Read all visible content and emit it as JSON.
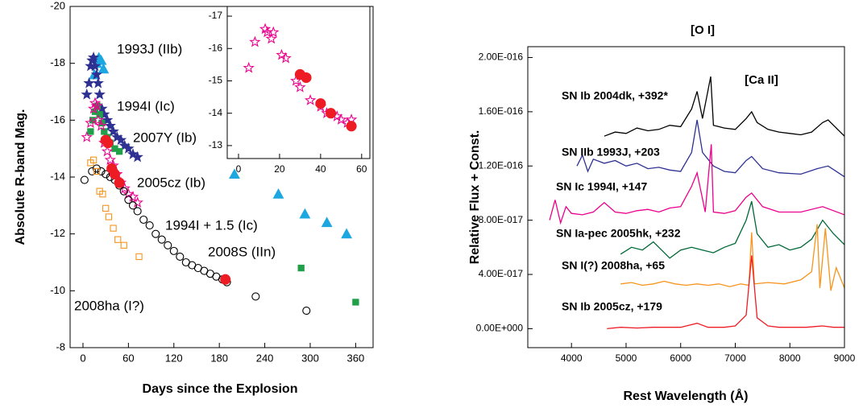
{
  "chart_data": [
    {
      "type": "scatter",
      "xlabel": "Days since the Explosion",
      "ylabel": "Absolute R-band Mag.",
      "xlim": [
        -17,
        383
      ],
      "ylim": [
        -8,
        -20
      ],
      "xticks": [
        0,
        60,
        120,
        180,
        240,
        300,
        360
      ],
      "yticks": [
        -20,
        -18,
        -16,
        -14,
        -12,
        -10,
        -8
      ],
      "series": [
        {
          "name": "1993J (IIb)",
          "color": "#1ca7e0",
          "marker": "triangle",
          "filled": true,
          "x": [
            15,
            18,
            21,
            24,
            27,
            200,
            258,
            293,
            322,
            348
          ],
          "values": [
            -17.6,
            -18.0,
            -18.2,
            -18.1,
            -17.8,
            -14.1,
            -13.4,
            -12.7,
            -12.4,
            -12.0
          ]
        },
        {
          "name": "1994I (Ic)",
          "color": "#2e3192",
          "marker": "star",
          "filled": true,
          "x": [
            5,
            8,
            10,
            12,
            14,
            16,
            18,
            20,
            22,
            25,
            28,
            32,
            36,
            40,
            45,
            50,
            55,
            60,
            66,
            72
          ],
          "values": [
            -16.9,
            -17.3,
            -17.9,
            -18.1,
            -18.2,
            -17.9,
            -17.6,
            -17.3,
            -16.9,
            -16.4,
            -16.2,
            -16.0,
            -15.8,
            -15.6,
            -15.4,
            -15.3,
            -15.1,
            -15.0,
            -14.8,
            -14.7
          ]
        },
        {
          "name": "2007Y (Ib)",
          "color": "#1fa049",
          "marker": "square",
          "filled": true,
          "x": [
            10,
            13,
            16,
            19,
            22,
            25,
            28,
            32,
            36,
            42,
            48,
            288,
            360
          ],
          "values": [
            -15.6,
            -16.0,
            -16.3,
            -16.5,
            -16.2,
            -15.9,
            -15.6,
            -15.4,
            -15.2,
            -15.0,
            -14.9,
            -10.8,
            -9.6
          ]
        },
        {
          "name": "1994I + 1.5 (Ic)",
          "color": "#ec008c",
          "marker": "star",
          "filled": false,
          "x": [
            5,
            10,
            14,
            16,
            18,
            20,
            24,
            28,
            32,
            36,
            40,
            45,
            50,
            55,
            60,
            66,
            72
          ],
          "values": [
            -15.4,
            -15.9,
            -16.4,
            -16.6,
            -16.5,
            -16.0,
            -15.8,
            -15.2,
            -14.9,
            -14.6,
            -14.4,
            -14.1,
            -13.8,
            -13.6,
            -13.4,
            -13.3,
            -13.1
          ]
        },
        {
          "name": "2008S (IIn)",
          "color": "#000000",
          "marker": "circle",
          "filled": false,
          "x": [
            2,
            12,
            18,
            24,
            30,
            36,
            42,
            48,
            54,
            60,
            66,
            72,
            80,
            88,
            96,
            104,
            112,
            120,
            128,
            136,
            144,
            152,
            160,
            168,
            176,
            184,
            190,
            228,
            295
          ],
          "values": [
            -13.9,
            -14.2,
            -14.3,
            -14.2,
            -14.1,
            -14.0,
            -13.9,
            -13.7,
            -13.5,
            -13.2,
            -13.0,
            -12.8,
            -12.5,
            -12.3,
            -12.0,
            -11.8,
            -11.6,
            -11.4,
            -11.2,
            -11.0,
            -10.9,
            -10.8,
            -10.7,
            -10.6,
            -10.5,
            -10.4,
            -10.3,
            -9.8,
            -9.3
          ]
        },
        {
          "name": "2008ha (I?)",
          "color": "#f7941d",
          "marker": "square",
          "filled": false,
          "x": [
            10,
            14,
            18,
            22,
            26,
            30,
            34,
            40,
            46,
            54,
            74
          ],
          "values": [
            -14.5,
            -14.6,
            -14.2,
            -13.5,
            -13.4,
            -12.9,
            -12.6,
            -12.2,
            -11.8,
            -11.6,
            -11.2
          ]
        },
        {
          "name": "2005cz (Ib)",
          "color": "#ed1c24",
          "marker": "circle",
          "filled": true,
          "x": [
            30,
            33,
            38,
            42,
            48,
            188
          ],
          "values": [
            -15.3,
            -15.2,
            -14.3,
            -14.1,
            -13.8,
            -10.4
          ]
        }
      ]
    },
    {
      "type": "scatter",
      "xlim": [
        -5.5,
        64
      ],
      "ylim": [
        -12.6,
        -17.3
      ],
      "xticks": [
        0,
        20,
        40,
        60
      ],
      "yticks": [
        -17,
        -16,
        -15,
        -14,
        -13
      ],
      "series": [
        {
          "color": "#ec008c",
          "marker": "star",
          "filled": false,
          "x": [
            5,
            8,
            13,
            14,
            16,
            17,
            21,
            23,
            28,
            30,
            35,
            40,
            43,
            48,
            50,
            53,
            55
          ],
          "values": [
            -15.4,
            -16.2,
            -16.6,
            -16.5,
            -16.3,
            -16.5,
            -15.8,
            -15.7,
            -15.0,
            -14.8,
            -14.4,
            -14.2,
            -14.0,
            -13.9,
            -13.8,
            -13.7,
            -13.8
          ]
        },
        {
          "color": "#ed1c24",
          "marker": "circle",
          "filled": true,
          "x": [
            30,
            33,
            40,
            45,
            55
          ],
          "values": [
            -15.2,
            -15.1,
            -14.3,
            -14.0,
            -13.6
          ]
        }
      ]
    },
    {
      "type": "line",
      "xlabel": "Rest Wavelength (Å)",
      "ylabel": "Relative Flux + Const.",
      "xlim": [
        3200,
        9000
      ],
      "ylim": [
        -1.4e-17,
        2.08e-16
      ],
      "xticks": [
        4000,
        5000,
        6000,
        7000,
        8000,
        9000
      ],
      "yticks": [
        {
          "value": 0,
          "label": "0.00E+000"
        },
        {
          "value": 4e-17,
          "label": "4.00E-017"
        },
        {
          "value": 8e-17,
          "label": "8.00E-017"
        },
        {
          "value": 1.2e-16,
          "label": "1.20E-016"
        },
        {
          "value": 1.6e-16,
          "label": "1.60E-016"
        },
        {
          "value": 2e-16,
          "label": "2.00E-016"
        }
      ],
      "annotations": [
        {
          "text": "[O I]"
        },
        {
          "text": "[Ca II]"
        }
      ],
      "series": [
        {
          "name": "SN Ib 2004dk, +392*",
          "color": "#000000",
          "x": [
            4600,
            4800,
            5000,
            5200,
            5400,
            5600,
            5800,
            6000,
            6200,
            6300,
            6400,
            6550,
            6600,
            6800,
            7000,
            7200,
            7300,
            7400,
            7600,
            7800,
            8000,
            8200,
            8400,
            8600,
            8700,
            8800,
            9000
          ],
          "values": [
            1.42e-16,
            1.45e-16,
            1.44e-16,
            1.48e-16,
            1.46e-16,
            1.47e-16,
            1.5e-16,
            1.49e-16,
            1.62e-16,
            1.75e-16,
            1.55e-16,
            1.86e-16,
            1.5e-16,
            1.48e-16,
            1.47e-16,
            1.55e-16,
            1.6e-16,
            1.52e-16,
            1.47e-16,
            1.45e-16,
            1.44e-16,
            1.43e-16,
            1.45e-16,
            1.52e-16,
            1.54e-16,
            1.5e-16,
            1.42e-16
          ]
        },
        {
          "name": "SN IIb 1993J, +203",
          "color": "#2e3192",
          "x": [
            4100,
            4200,
            4300,
            4400,
            4600,
            4800,
            5000,
            5200,
            5400,
            5600,
            5800,
            6000,
            6200,
            6300,
            6400,
            6600,
            6800,
            7000,
            7200,
            7300,
            7500,
            7800,
            8200,
            8500,
            8700,
            9000
          ],
          "values": [
            1.2e-16,
            1.28e-16,
            1.16e-16,
            1.25e-16,
            1.22e-16,
            1.24e-16,
            1.2e-16,
            1.22e-16,
            1.18e-16,
            1.19e-16,
            1.17e-16,
            1.16e-16,
            1.3e-16,
            1.54e-16,
            1.3e-16,
            1.2e-16,
            1.16e-16,
            1.15e-16,
            1.24e-16,
            1.27e-16,
            1.18e-16,
            1.15e-16,
            1.14e-16,
            1.18e-16,
            1.2e-16,
            1.12e-16
          ]
        },
        {
          "name": "SN Ic 1994I, +147",
          "color": "#ec008c",
          "x": [
            3600,
            3700,
            3800,
            3900,
            4000,
            4200,
            4400,
            4600,
            4800,
            5000,
            5200,
            5400,
            5600,
            5800,
            6000,
            6200,
            6300,
            6450,
            6560,
            6600,
            6800,
            7000,
            7200,
            7300,
            7500,
            7800,
            8200,
            8600,
            9000
          ],
          "values": [
            8e-17,
            9.5e-17,
            7.8e-17,
            9e-17,
            8.5e-17,
            8.4e-17,
            8.6e-17,
            9.3e-17,
            8.6e-17,
            8.5e-17,
            8.7e-17,
            8.8e-17,
            8.6e-17,
            8.9e-17,
            9e-17,
            1.05e-16,
            1.15e-16,
            8.6e-17,
            1.36e-16,
            8.6e-17,
            8.5e-17,
            8.7e-17,
            9.7e-17,
            1e-16,
            9e-17,
            8.6e-17,
            8.6e-17,
            9e-17,
            8.4e-17
          ]
        },
        {
          "name": "SN Ia-pec 2005hk, +232",
          "color": "#006837",
          "x": [
            4900,
            5100,
            5300,
            5500,
            5700,
            5800,
            6000,
            6200,
            6400,
            6600,
            6800,
            7000,
            7200,
            7300,
            7400,
            7600,
            7800,
            8000,
            8200,
            8400,
            8600,
            8800,
            9000
          ],
          "values": [
            5.5e-17,
            6e-17,
            5.8e-17,
            6.4e-17,
            5.6e-17,
            5.2e-17,
            5.8e-17,
            6e-17,
            5.8e-17,
            5.6e-17,
            6e-17,
            6.3e-17,
            8e-17,
            9.4e-17,
            7e-17,
            6e-17,
            6.2e-17,
            5.8e-17,
            6e-17,
            6.6e-17,
            8e-17,
            7e-17,
            6.2e-17
          ]
        },
        {
          "name": "SN I(?) 2008ha, +65",
          "color": "#f7941d",
          "x": [
            4900,
            5100,
            5300,
            5500,
            5700,
            5900,
            6100,
            6300,
            6500,
            6700,
            6900,
            7100,
            7250,
            7300,
            7350,
            7600,
            7900,
            8200,
            8400,
            8500,
            8550,
            8650,
            8750,
            8850,
            9000
          ],
          "values": [
            3.3e-17,
            3.4e-17,
            3.2e-17,
            3.3e-17,
            3.5e-17,
            3.3e-17,
            3.2e-17,
            3.3e-17,
            3.2e-17,
            3.3e-17,
            3.1e-17,
            3.3e-17,
            3.2e-17,
            7.1e-17,
            3.3e-17,
            3.4e-17,
            3.3e-17,
            3.6e-17,
            4.2e-17,
            7.7e-17,
            3e-17,
            7.4e-17,
            2.8e-17,
            4.5e-17,
            3e-17
          ]
        },
        {
          "name": "SN Ib 2005cz, +179",
          "color": "#ed1c24",
          "x": [
            4650,
            4900,
            5200,
            5500,
            5800,
            6000,
            6300,
            6500,
            6800,
            7000,
            7200,
            7300,
            7400,
            7600,
            7800,
            8000,
            8300,
            8600,
            8800,
            9000
          ],
          "values": [
            0,
            1e-18,
            5e-19,
            1e-18,
            1e-18,
            1e-18,
            4e-18,
            1e-18,
            1e-18,
            2e-18,
            1e-17,
            5.4e-17,
            8e-18,
            2e-18,
            1e-18,
            1e-18,
            1e-18,
            2e-18,
            1e-18,
            1e-18
          ]
        }
      ]
    }
  ]
}
